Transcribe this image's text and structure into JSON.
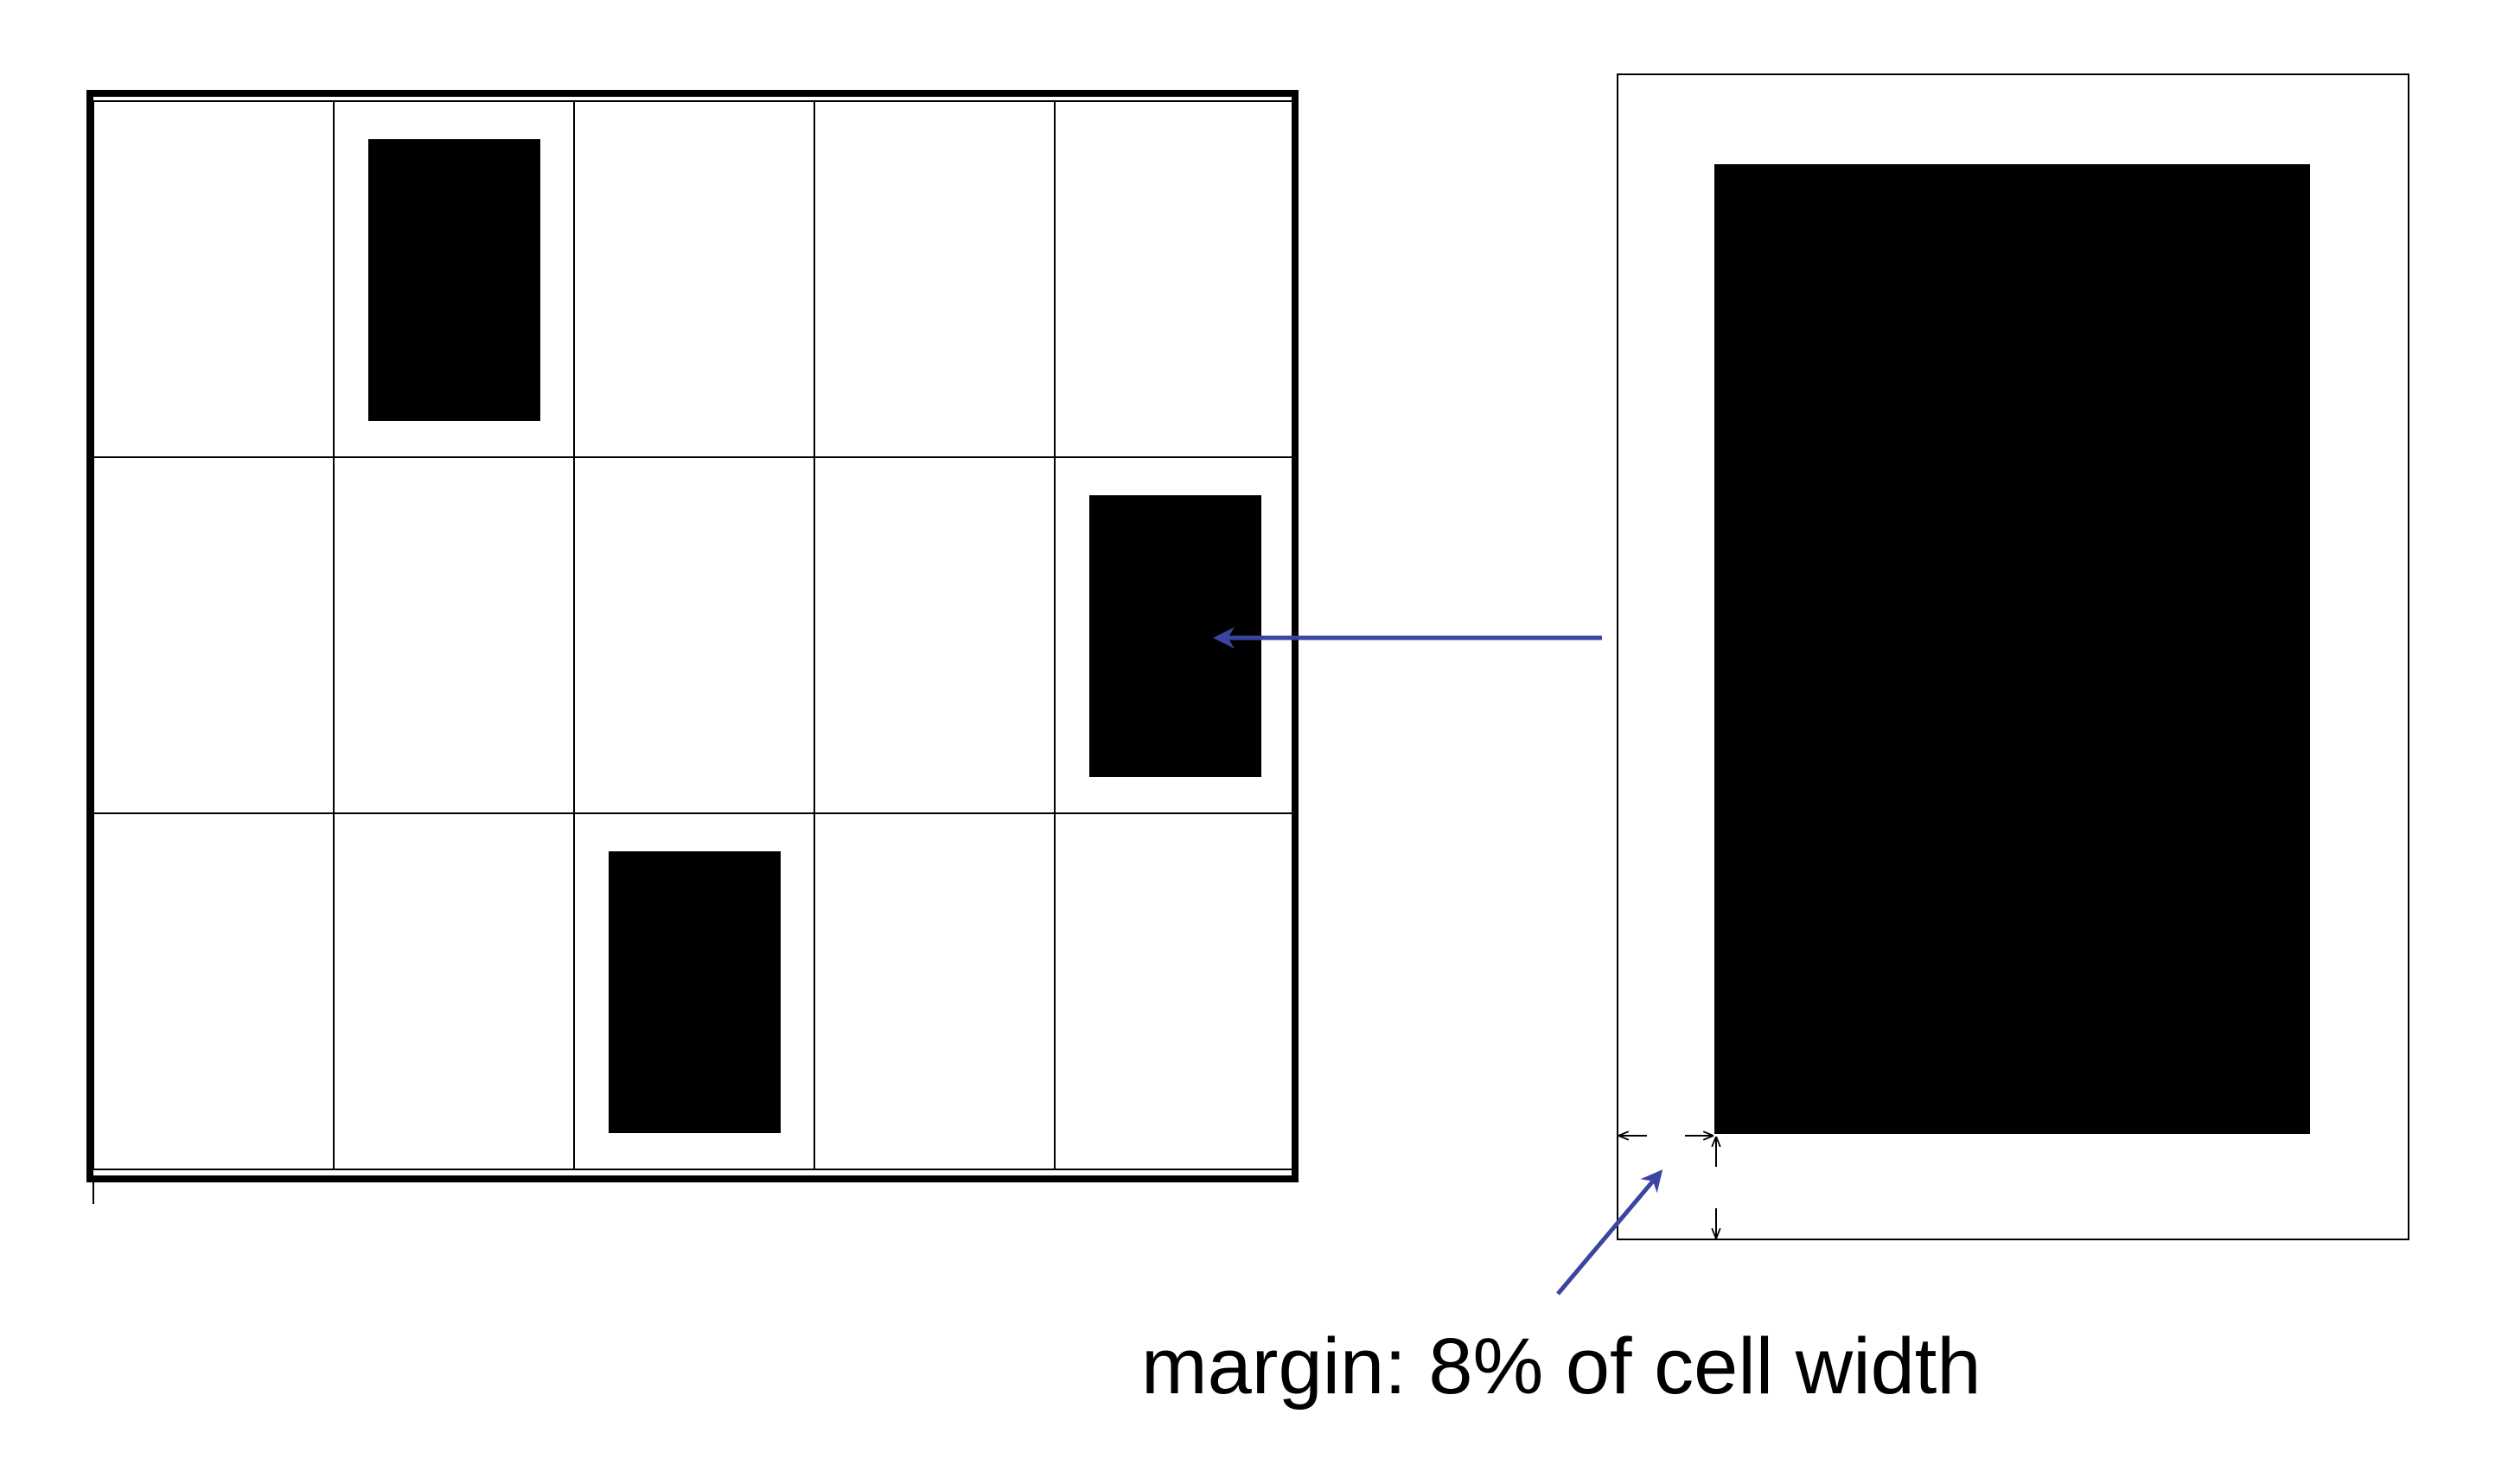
{
  "diagram": {
    "grid": {
      "rows": 3,
      "cols": 5,
      "filled_cells": [
        {
          "row": 0,
          "col": 1
        },
        {
          "row": 1,
          "col": 4
        },
        {
          "row": 2,
          "col": 2
        }
      ]
    },
    "zoom_margin_fraction": 0.08,
    "caption": "margin: 8% of cell width"
  },
  "colors": {
    "background": "#ffffff",
    "line": "#000000",
    "fill": "#000000",
    "arrow": "#3b44a0"
  }
}
